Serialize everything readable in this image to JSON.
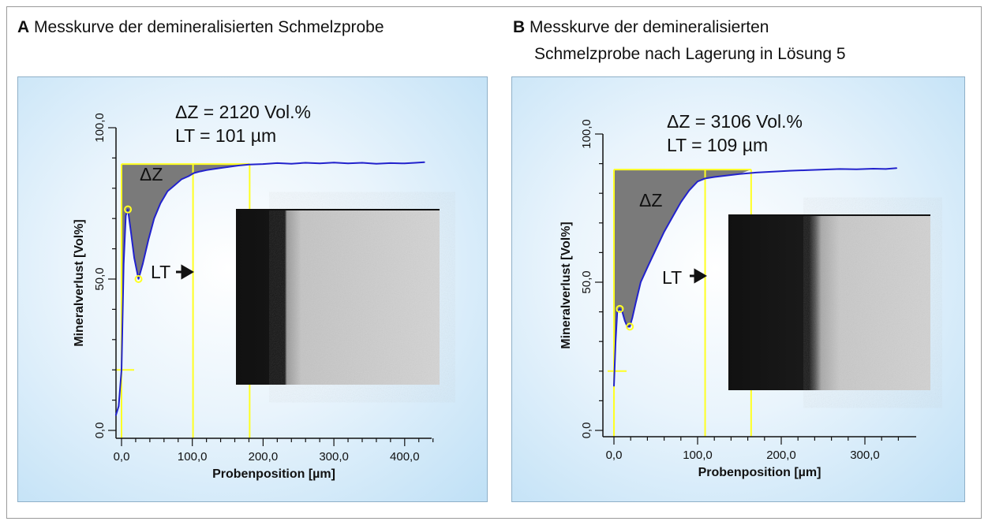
{
  "panel_a": {
    "title_letter": "A",
    "title_text": "Messkurve der demineralisierten Schmelzprobe",
    "delta_z_text": "ΔZ = 2120 Vol.%",
    "lt_text": "LT = 101 µm",
    "area_label": "ΔZ",
    "lt_label": "LT"
  },
  "panel_b": {
    "title_letter": "B",
    "title_text_line1": "Messkurve der demineralisierten",
    "title_text_line2": "Schmelzprobe nach Lagerung in Lösung 5",
    "delta_z_text": "ΔZ = 3106 Vol.%",
    "lt_text": "LT = 109 µm",
    "area_label": "ΔZ",
    "lt_label": "LT"
  },
  "colors": {
    "curve": "#2222cc",
    "marker": "#ffff22",
    "area": "#7a7a7a",
    "panel_border": "#8fb0c8"
  },
  "chart_data": [
    {
      "type": "line",
      "xlabel": "Probenposition [µm]",
      "ylabel": "Mineralverlust [Vol%]",
      "xlim": [
        -10,
        450
      ],
      "ylim": [
        0,
        100
      ],
      "xticks": [
        0,
        100,
        200,
        300,
        400
      ],
      "xtick_labels": [
        "0,0",
        "100,0",
        "200,0",
        "300,0",
        "400,0"
      ],
      "yticks": [
        0,
        50,
        100
      ],
      "ytick_labels": [
        "0,0",
        "50,0",
        "100,0"
      ],
      "reference_level": 88,
      "lower_marker_level": 20,
      "lt_line_x": 101,
      "end_line_x": 181,
      "start_line_x": 0,
      "series": [
        {
          "x": [
            -8,
            -4,
            0,
            3,
            6,
            9,
            13,
            18,
            24,
            30,
            38,
            46,
            55,
            65,
            75,
            85,
            95,
            102,
            110,
            120,
            135,
            150,
            165,
            180,
            200,
            220,
            240,
            260,
            280,
            300,
            320,
            340,
            360,
            380,
            400,
            415,
            428
          ],
          "y": [
            5,
            8,
            20,
            55,
            71,
            73,
            66,
            57,
            50,
            55,
            63,
            70,
            75,
            79,
            81,
            83,
            84,
            85,
            85.5,
            86,
            86.5,
            87,
            87.5,
            87.8,
            88,
            88.3,
            88.1,
            88.4,
            88.2,
            88.5,
            88.2,
            88.4,
            88.1,
            88.3,
            88.2,
            88.4,
            88.6
          ]
        }
      ]
    },
    {
      "type": "line",
      "xlabel": "Probenposition [µm]",
      "ylabel": "Mineralverlust [Vol%]",
      "xlim": [
        -10,
        350
      ],
      "ylim": [
        0,
        100
      ],
      "xticks": [
        0,
        100,
        200,
        300
      ],
      "xtick_labels": [
        "0,0",
        "100,0",
        "200,0",
        "300,0"
      ],
      "yticks": [
        0,
        50,
        100
      ],
      "ytick_labels": [
        "0,0",
        "50,0",
        "100,0"
      ],
      "reference_level": 88,
      "lower_marker_level": 20,
      "lt_line_x": 109,
      "end_line_x": 164,
      "start_line_x": 0,
      "series": [
        {
          "x": [
            0,
            2,
            4,
            7,
            10,
            13,
            16,
            19,
            22,
            26,
            32,
            40,
            50,
            60,
            70,
            80,
            90,
            100,
            109,
            120,
            135,
            150,
            170,
            190,
            210,
            230,
            250,
            270,
            290,
            310,
            325,
            338
          ],
          "y": [
            15,
            30,
            40,
            41,
            40,
            37,
            35,
            35,
            38,
            43,
            50,
            55,
            61,
            67,
            72,
            77,
            81,
            84,
            85,
            85.5,
            86,
            86.5,
            87,
            87.3,
            87.6,
            87.8,
            88,
            88.2,
            88.1,
            88.3,
            88.2,
            88.5
          ]
        }
      ]
    }
  ]
}
